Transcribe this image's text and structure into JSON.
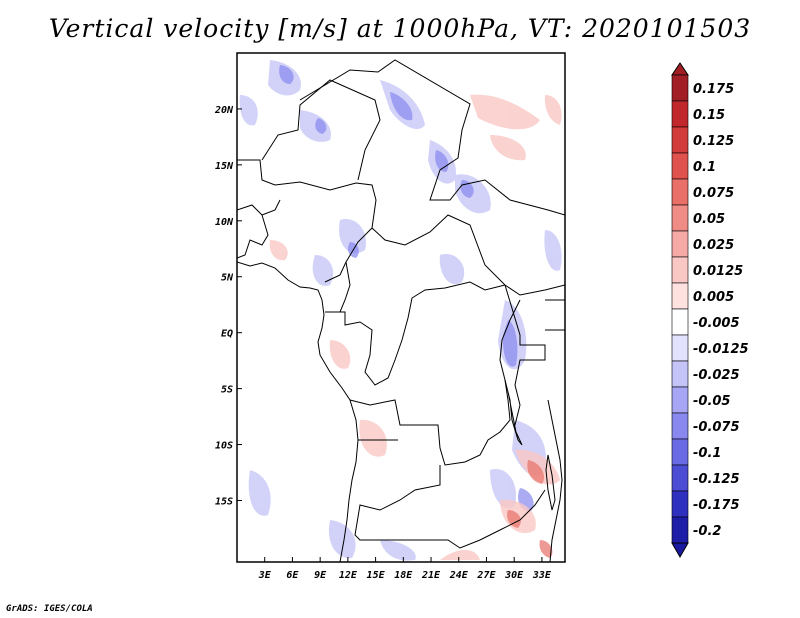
{
  "title": "Vertical velocity [m/s] at 1000hPa, VT: 2020101503",
  "credit": "GrADS: IGES/COLA",
  "map": {
    "lon_range": [
      0,
      35.5
    ],
    "lat_range": [
      -20.5,
      25
    ],
    "lat_ticks": [
      {
        "value": 20,
        "label": "20N"
      },
      {
        "value": 15,
        "label": "15N"
      },
      {
        "value": 10,
        "label": "10N"
      },
      {
        "value": 5,
        "label": "5N"
      },
      {
        "value": 0,
        "label": "EQ"
      },
      {
        "value": -5,
        "label": "5S"
      },
      {
        "value": -10,
        "label": "10S"
      },
      {
        "value": -15,
        "label": "15S"
      }
    ],
    "lon_ticks": [
      {
        "value": 3,
        "label": "3E"
      },
      {
        "value": 6,
        "label": "6E"
      },
      {
        "value": 9,
        "label": "9E"
      },
      {
        "value": 12,
        "label": "12E"
      },
      {
        "value": 15,
        "label": "15E"
      },
      {
        "value": 18,
        "label": "18E"
      },
      {
        "value": 21,
        "label": "21E"
      },
      {
        "value": 24,
        "label": "24E"
      },
      {
        "value": 27,
        "label": "27E"
      },
      {
        "value": 30,
        "label": "30E"
      },
      {
        "value": 33,
        "label": "33E"
      }
    ]
  },
  "colorbar": {
    "levels": [
      {
        "label": "0.175",
        "color": "#a01e24"
      },
      {
        "label": "0.15",
        "color": "#c0282c"
      },
      {
        "label": "0.125",
        "color": "#d23c3a"
      },
      {
        "label": "0.1",
        "color": "#e0524e"
      },
      {
        "label": "0.075",
        "color": "#e87068"
      },
      {
        "label": "0.05",
        "color": "#f08c86"
      },
      {
        "label": "0.025",
        "color": "#f5aaa6"
      },
      {
        "label": "0.0125",
        "color": "#fac8c4"
      },
      {
        "label": "0.005",
        "color": "#fde2e0"
      },
      {
        "label": "-0.005",
        "color": "#ffffff"
      },
      {
        "label": "-0.0125",
        "color": "#e2e2fc"
      },
      {
        "label": "-0.025",
        "color": "#c4c4f8"
      },
      {
        "label": "-0.05",
        "color": "#a6a6f4"
      },
      {
        "label": "-0.075",
        "color": "#8888ee"
      },
      {
        "label": "-0.1",
        "color": "#6a6ae4"
      },
      {
        "label": "-0.125",
        "color": "#4c4cd4"
      },
      {
        "label": "-0.175",
        "color": "#3030c0"
      },
      {
        "label": "-0.2",
        "color": "#1e1ea8"
      }
    ],
    "top_color": "#a01e24",
    "bottom_color": "#1a1aa0"
  }
}
